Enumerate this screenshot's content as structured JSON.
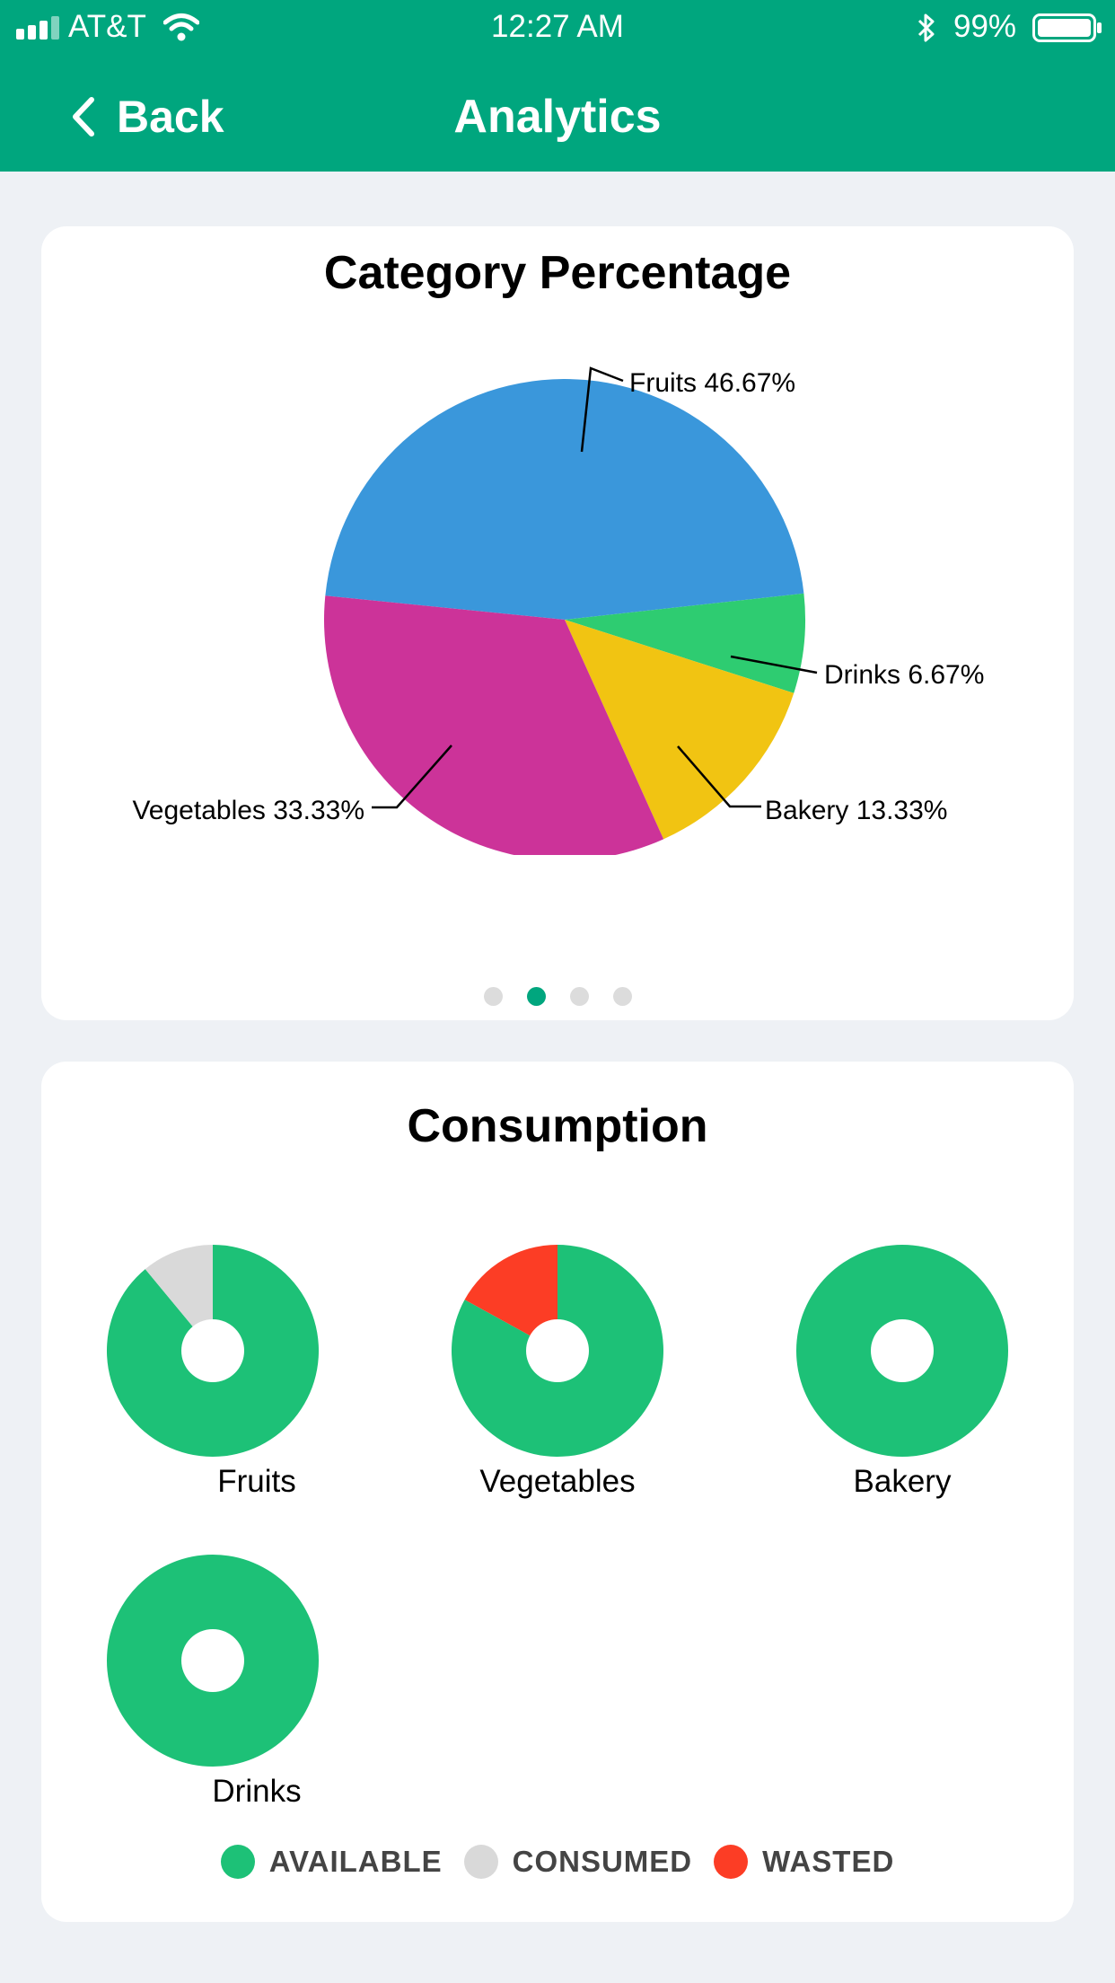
{
  "status": {
    "carrier": "AT&T",
    "time": "12:27 AM",
    "battery": "99%",
    "signal_icon": "signal-bars-icon",
    "wifi_icon": "wifi-icon",
    "bluetooth_icon": "bluetooth-icon",
    "battery_icon": "battery-icon"
  },
  "nav": {
    "back_label": "Back",
    "title": "Analytics"
  },
  "colors": {
    "header": "#00a67e",
    "fruits": "#3a97db",
    "vegetables": "#cc3399",
    "bakery": "#f1c412",
    "drinks": "#2ecc71",
    "available": "#1dc177",
    "consumed": "#d9d9d9",
    "wasted": "#fc3d25",
    "dot_active": "#00a67e",
    "dot_inactive": "#dcdcdc"
  },
  "chart_data": [
    {
      "type": "pie",
      "title": "Category Percentage",
      "slices": [
        {
          "label": "Fruits",
          "value": 46.67,
          "display": "Fruits 46.67%"
        },
        {
          "label": "Drinks",
          "value": 6.67,
          "display": "Drinks 6.67%"
        },
        {
          "label": "Bakery",
          "value": 13.33,
          "display": "Bakery 13.33%"
        },
        {
          "label": "Vegetables",
          "value": 33.33,
          "display": "Vegetables 33.33%"
        }
      ],
      "pager": {
        "pages": 4,
        "active": 1
      }
    },
    {
      "type": "pie",
      "title": "Consumption",
      "legend": [
        "AVAILABLE",
        "CONSUMED",
        "WASTED"
      ],
      "donuts": [
        {
          "label": "Fruits",
          "available": 0.89,
          "consumed": 0.11,
          "wasted": 0
        },
        {
          "label": "Vegetables",
          "available": 0.83,
          "consumed": 0,
          "wasted": 0.17
        },
        {
          "label": "Bakery",
          "available": 1,
          "consumed": 0,
          "wasted": 0
        },
        {
          "label": "Drinks",
          "available": 1,
          "consumed": 0,
          "wasted": 0
        }
      ]
    }
  ]
}
